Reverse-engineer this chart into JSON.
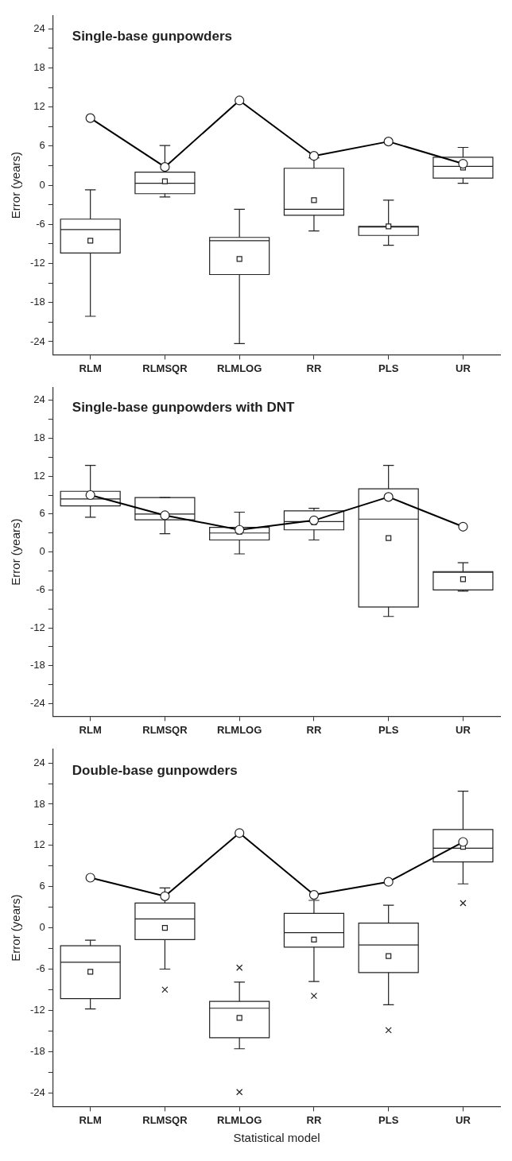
{
  "chart_data": [
    {
      "type": "box",
      "title": "Single-base gunpowders",
      "ylabel": "Error (years)",
      "categories": [
        "RLM",
        "RLMSQR",
        "RLMLOG",
        "RR",
        "PLS",
        "UR"
      ],
      "ylim": [
        -26,
        26
      ],
      "yticks": [
        -24,
        {
          "value": -21,
          "label": null
        },
        -18,
        {
          "value": -15,
          "label": null
        },
        -12,
        {
          "value": -9,
          "label": null
        },
        -6,
        {
          "value": -3,
          "label": null
        },
        0,
        {
          "value": 3,
          "label": null
        },
        6,
        {
          "value": 9,
          "label": null
        },
        12,
        {
          "value": 15,
          "label": null
        },
        18,
        {
          "value": 21,
          "label": null
        },
        24
      ],
      "grid": false,
      "marker": "circle",
      "boxes": [
        {
          "low": -20.1,
          "q1": -10.4,
          "median": -6.8,
          "q3": -5.2,
          "high": -0.7,
          "mean": -8.5
        },
        {
          "low": -1.8,
          "q1": -1.3,
          "median": 0.3,
          "q3": 2.0,
          "high": 6.1,
          "mean": 0.6
        },
        {
          "low": -24.3,
          "q1": -13.7,
          "median": -8.5,
          "q3": -8.0,
          "high": -3.7,
          "mean": -11.3
        },
        {
          "low": -7.0,
          "q1": -4.6,
          "median": -3.7,
          "q3": 2.6,
          "high": 4.2,
          "mean": -2.3
        },
        {
          "low": -9.2,
          "q1": -7.7,
          "median": -6.4,
          "q3": -6.3,
          "high": -2.3,
          "mean": -6.3
        },
        {
          "low": 0.3,
          "q1": 1.1,
          "median": 2.9,
          "q3": 4.3,
          "high": 5.8,
          "mean": 2.7
        }
      ],
      "series": [
        {
          "type": "line",
          "color": "#000000",
          "values": [
            10.3,
            2.8,
            13.0,
            4.5,
            6.7,
            3.3
          ]
        }
      ]
    },
    {
      "type": "box",
      "title": "Single-base gunpowders with DNT",
      "ylabel": "Error (years)",
      "categories": [
        "RLM",
        "RLMSQR",
        "RLMLOG",
        "RR",
        "PLS",
        "UR"
      ],
      "ylim": [
        -26,
        26
      ],
      "yticks": [
        -24,
        {
          "value": -21,
          "label": null
        },
        -18,
        {
          "value": -15,
          "label": null
        },
        -12,
        {
          "value": -9,
          "label": null
        },
        -6,
        {
          "value": -3,
          "label": null
        },
        0,
        {
          "value": 3,
          "label": null
        },
        6,
        {
          "value": 9,
          "label": null
        },
        12,
        {
          "value": 15,
          "label": null
        },
        18,
        {
          "value": 21,
          "label": null
        },
        24
      ],
      "grid": false,
      "marker": "circle",
      "boxes": [
        {
          "low": 5.5,
          "q1": 7.3,
          "median": 8.4,
          "q3": 9.6,
          "high": 13.7
        },
        {
          "low": 2.9,
          "q1": 5.1,
          "median": 6.0,
          "q3": 8.6,
          "high": 8.6
        },
        {
          "low": -0.3,
          "q1": 1.9,
          "median": 3.0,
          "q3": 3.9,
          "high": 6.3,
          "mean": 3.2
        },
        {
          "low": 1.9,
          "q1": 3.5,
          "median": 4.8,
          "q3": 6.5,
          "high": 6.9,
          "mean": 4.7
        },
        {
          "low": -10.2,
          "q1": -8.7,
          "median": 5.2,
          "q3": 10.0,
          "high": 13.7,
          "mean": 2.2
        },
        {
          "low": -6.2,
          "q1": -6.0,
          "median": -3.2,
          "q3": -3.1,
          "high": -1.7,
          "mean": -4.3
        }
      ],
      "series": [
        {
          "type": "line",
          "color": "#000000",
          "values": [
            9.0,
            5.8,
            3.5,
            5.0,
            8.7,
            4.0
          ]
        }
      ]
    },
    {
      "type": "box",
      "title": "Double-base gunpowders",
      "xlabel": "Statistical model",
      "ylabel": "Error (years)",
      "categories": [
        "RLM",
        "RLMSQR",
        "RLMLOG",
        "RR",
        "PLS",
        "UR"
      ],
      "ylim": [
        -26,
        26
      ],
      "yticks": [
        -24,
        {
          "value": -21,
          "label": null
        },
        -18,
        {
          "value": -15,
          "label": null
        },
        -12,
        {
          "value": -9,
          "label": null
        },
        -6,
        {
          "value": -3,
          "label": null
        },
        0,
        {
          "value": 3,
          "label": null
        },
        6,
        {
          "value": 9,
          "label": null
        },
        12,
        {
          "value": 15,
          "label": null
        },
        18,
        {
          "value": 21,
          "label": null
        },
        24
      ],
      "grid": false,
      "marker": "circle",
      "boxes": [
        {
          "low": -11.8,
          "q1": -10.3,
          "median": -5.0,
          "q3": -2.6,
          "high": -1.8,
          "mean": -6.4
        },
        {
          "low": -6.0,
          "q1": -1.7,
          "median": 1.3,
          "q3": 3.6,
          "high": 5.8,
          "mean": 0.0,
          "outliers": [
            -9.0
          ]
        },
        {
          "low": -17.6,
          "q1": -16.0,
          "median": -11.7,
          "q3": -10.7,
          "high": -7.9,
          "mean": -13.1,
          "outliers": [
            -5.8,
            -23.9
          ]
        },
        {
          "low": -7.8,
          "q1": -2.8,
          "median": -0.7,
          "q3": 2.1,
          "high": 4.0,
          "mean": -1.7,
          "outliers": [
            -9.9
          ]
        },
        {
          "low": -11.2,
          "q1": -6.5,
          "median": -2.5,
          "q3": 0.7,
          "high": 3.3,
          "mean": -4.1,
          "outliers": [
            -14.9
          ]
        },
        {
          "low": 6.4,
          "q1": 9.6,
          "median": 11.6,
          "q3": 14.3,
          "high": 19.9,
          "mean": 11.8,
          "outliers": [
            3.6
          ]
        }
      ],
      "series": [
        {
          "type": "line",
          "color": "#000000",
          "values": [
            7.3,
            4.6,
            13.8,
            4.8,
            6.7,
            12.5
          ]
        }
      ]
    }
  ]
}
